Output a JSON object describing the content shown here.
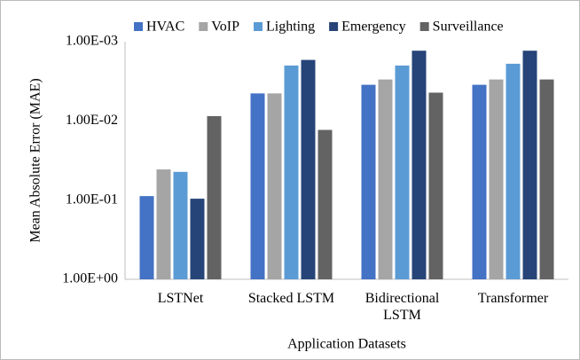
{
  "chart_data": {
    "type": "bar",
    "y_label": "Mean Absolute Error (MAE)",
    "x_label": "Application Datasets",
    "categories": [
      "LSTNet",
      "Stacked LSTM",
      "Bidirectional LSTM",
      "Transformer"
    ],
    "series": [
      {
        "name": "HVAC",
        "color": "#4472c4",
        "values": [
          0.089,
          0.0045,
          0.0035,
          0.0035
        ]
      },
      {
        "name": "VoIP",
        "color": "#a5a5a5",
        "values": [
          0.041,
          0.0045,
          0.003,
          0.003
        ]
      },
      {
        "name": "Lighting",
        "color": "#5b9bd5",
        "values": [
          0.044,
          0.002,
          0.002,
          0.0019
        ]
      },
      {
        "name": "Emergency",
        "color": "#264478",
        "values": [
          0.096,
          0.0017,
          0.0013,
          0.0013
        ]
      },
      {
        "name": "Surveillance",
        "color": "#636363",
        "values": [
          0.0087,
          0.013,
          0.0044,
          0.003
        ]
      }
    ],
    "log_scale": true,
    "ylim": [
      1,
      0.001
    ],
    "yticks": [
      {
        "value": 1,
        "label": "1.00E+00"
      },
      {
        "value": 0.1,
        "label": "1.00E-01"
      },
      {
        "value": 0.01,
        "label": "1.00E-02"
      },
      {
        "value": 0.001,
        "label": "1.00E-03"
      }
    ],
    "legend": "top"
  }
}
